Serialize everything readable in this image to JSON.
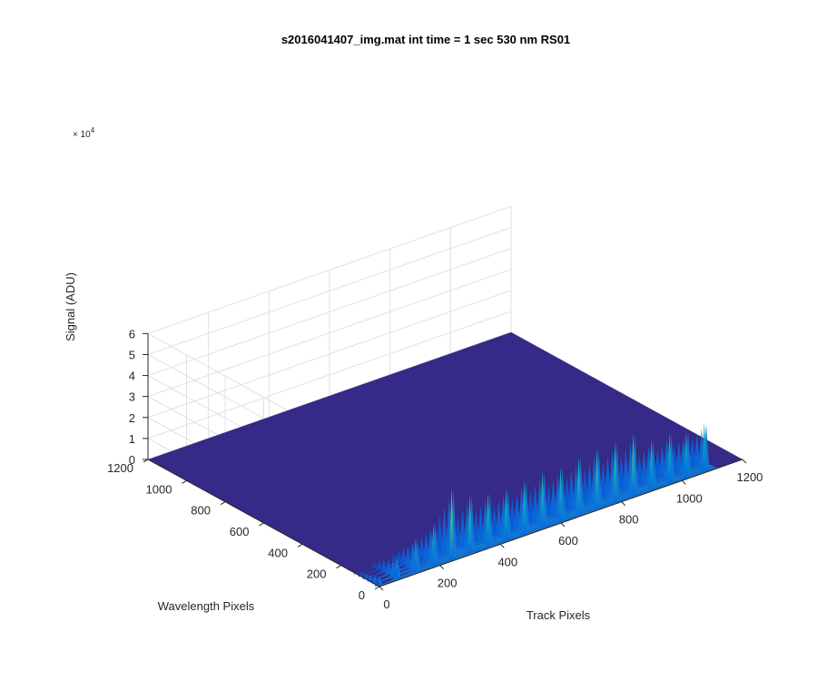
{
  "chart_data": {
    "type": "surface",
    "title": "s2016041407_img.mat int time = 1 sec  530 nm RS01",
    "xlabel": "Track Pixels",
    "ylabel": "Wavelength Pixels",
    "zlabel": "Signal (ADU)",
    "z_multiplier": "× 10",
    "z_multiplier_exp": "4",
    "xlim": [
      0,
      1200
    ],
    "ylim": [
      0,
      1200
    ],
    "zlim": [
      0,
      6
    ],
    "x_ticks": [
      "0",
      "200",
      "400",
      "600",
      "800",
      "1000",
      "1200"
    ],
    "y_ticks": [
      "0",
      "200",
      "400",
      "600",
      "800",
      "1000",
      "1200"
    ],
    "z_ticks": [
      "0",
      "1",
      "2",
      "3",
      "4",
      "5",
      "6"
    ],
    "grid": true,
    "colormap": [
      "#352a87",
      "#0363e1",
      "#1485d4",
      "#06a7c6",
      "#38b99e",
      "#92bf73",
      "#d9ba56",
      "#fcce2e",
      "#f9fb0e"
    ],
    "surface_color": "#352a87",
    "peaks_x": [
      0,
      60,
      125,
      185,
      245,
      305,
      365,
      425,
      485,
      545,
      605,
      665,
      725,
      785,
      845,
      905,
      965,
      1020,
      1080
    ],
    "peaks_z": [
      0.5,
      1.1,
      1.6,
      2.0,
      3.4,
      2.8,
      2.6,
      2.5,
      2.6,
      2.7,
      2.6,
      2.8,
      2.9,
      2.9,
      3.0,
      2.4,
      2.4,
      2.2,
      2.3
    ],
    "peak_band_y": [
      0,
      120
    ]
  }
}
